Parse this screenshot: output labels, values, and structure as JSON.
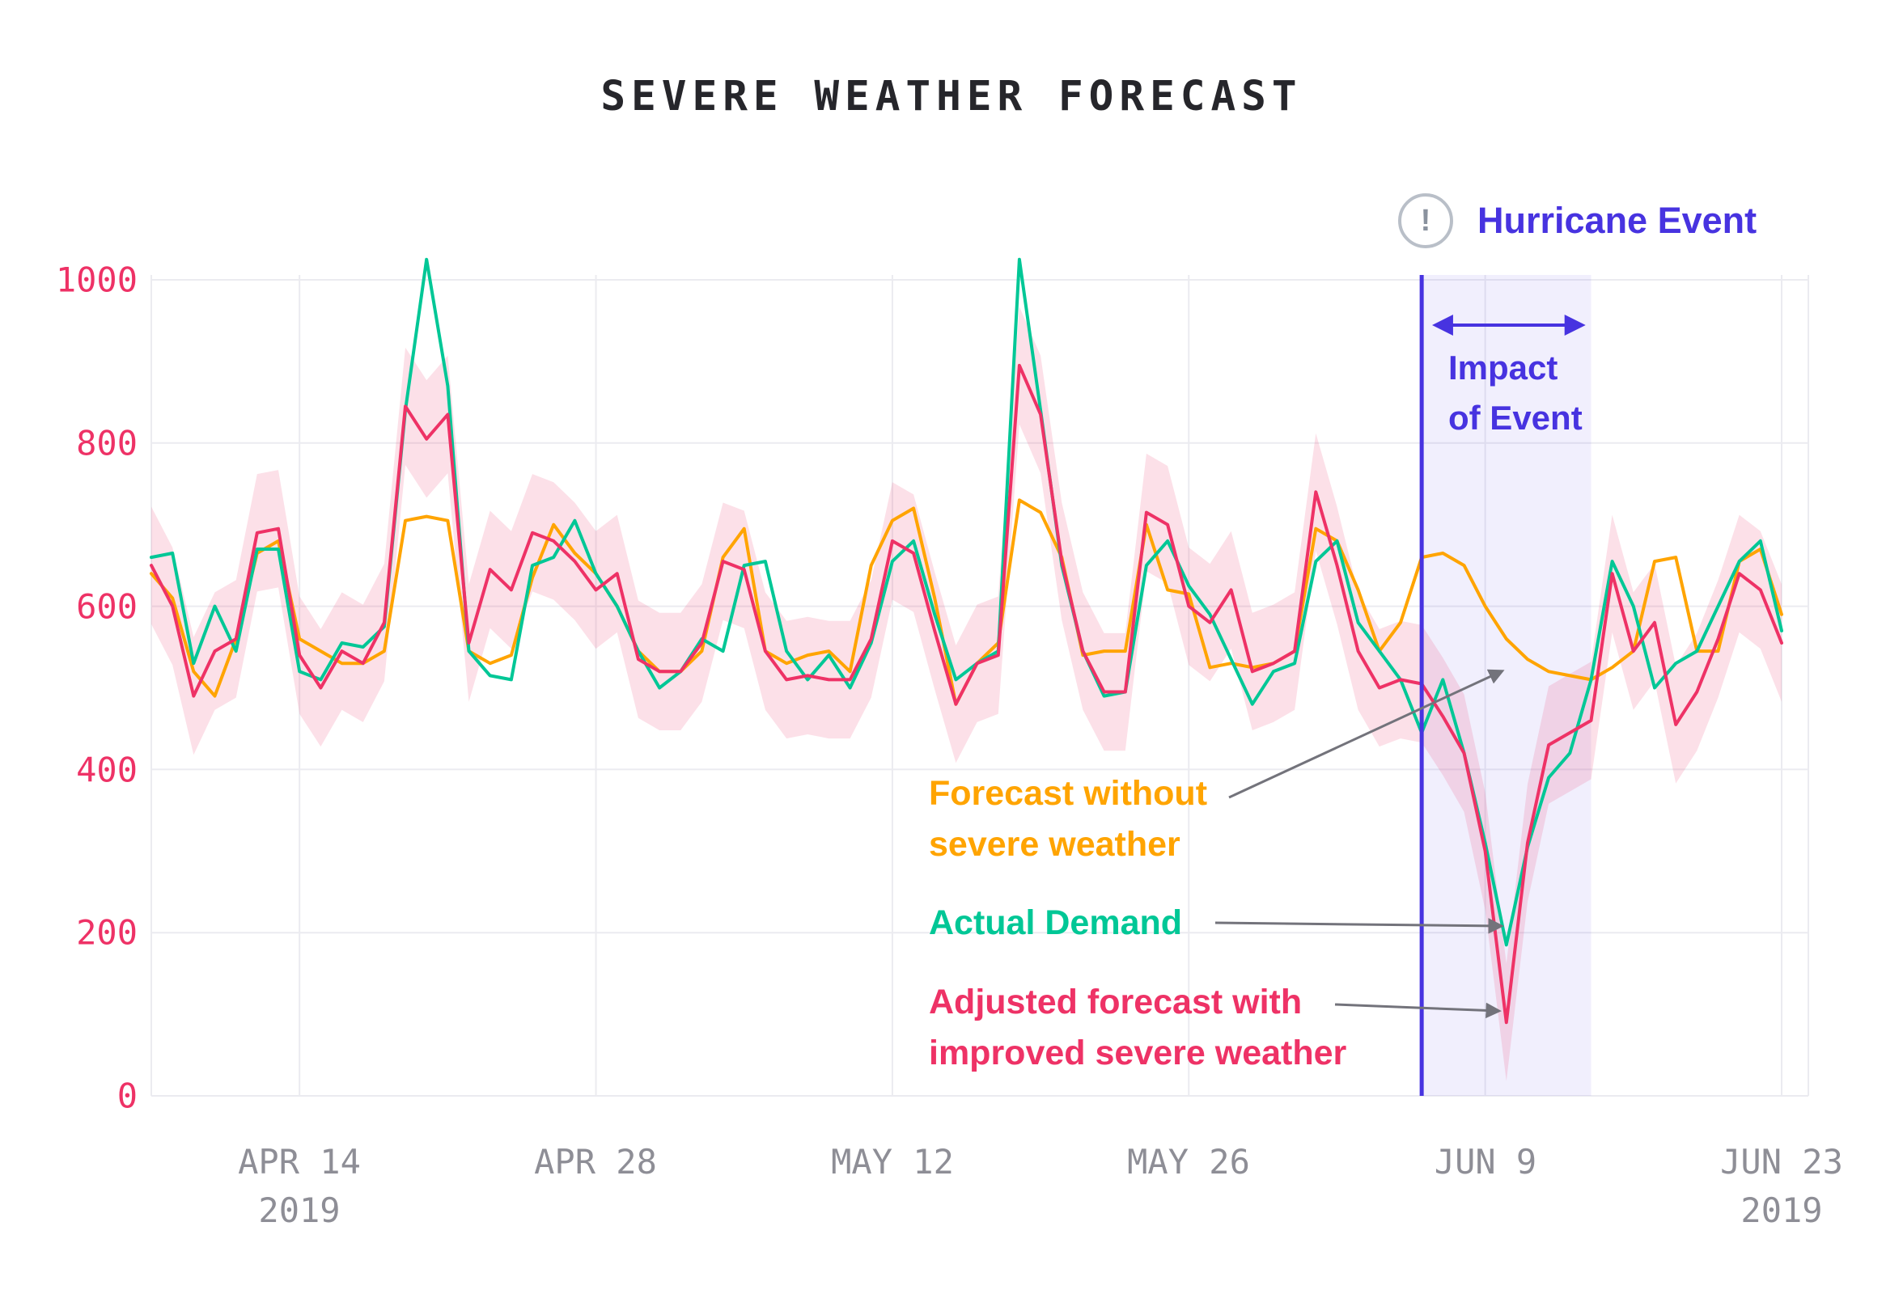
{
  "title": "SEVERE WEATHER FORECAST",
  "event_badge": {
    "icon": "!",
    "label": "Hurricane Event"
  },
  "chart_data": {
    "type": "line",
    "title": "SEVERE WEATHER FORECAST",
    "ylim": [
      0,
      1000
    ],
    "grid": true,
    "y_ticks": [
      0,
      200,
      400,
      600,
      800,
      1000
    ],
    "x_tick_labels": [
      {
        "day": 7,
        "label": "APR 14",
        "year": "2019"
      },
      {
        "day": 21,
        "label": "APR 28",
        "year": ""
      },
      {
        "day": 35,
        "label": "MAY 12",
        "year": ""
      },
      {
        "day": 49,
        "label": "MAY 26",
        "year": ""
      },
      {
        "day": 63,
        "label": "JUN 9",
        "year": ""
      },
      {
        "day": 77,
        "label": "JUN 23",
        "year": "2019"
      }
    ],
    "colors": {
      "background": "#FFFFFF",
      "grid": "#EBEBF0",
      "x_axis_labels": "#8E8E96",
      "y_axis_labels": "#EE3266",
      "title": "#26262B",
      "arrow": "#73737B"
    },
    "series": [
      {
        "name": "Actual Demand",
        "color": "#00C796",
        "values": [
          660,
          665,
          530,
          600,
          545,
          670,
          670,
          520,
          510,
          555,
          550,
          575,
          840,
          1025,
          870,
          545,
          515,
          510,
          650,
          660,
          705,
          640,
          600,
          545,
          500,
          520,
          560,
          545,
          650,
          655,
          545,
          510,
          540,
          500,
          555,
          655,
          680,
          590,
          510,
          530,
          545,
          1025,
          840,
          650,
          545,
          490,
          495,
          650,
          680,
          625,
          590,
          535,
          480,
          520,
          530,
          655,
          680,
          580,
          545,
          510,
          445,
          510,
          420,
          310,
          185,
          305,
          390,
          420,
          510,
          655,
          600,
          500,
          530,
          545,
          600,
          655,
          680,
          570
        ]
      },
      {
        "name": "Adjusted forecast with improved severe weather",
        "color": "#EE3266",
        "band_halfwidth": 72,
        "band_opacity": 0.15,
        "values": [
          650,
          600,
          490,
          545,
          560,
          690,
          695,
          540,
          500,
          545,
          530,
          580,
          845,
          805,
          835,
          555,
          645,
          620,
          690,
          680,
          655,
          620,
          640,
          535,
          520,
          520,
          555,
          655,
          645,
          545,
          510,
          515,
          510,
          510,
          560,
          680,
          665,
          570,
          480,
          530,
          540,
          895,
          835,
          655,
          545,
          495,
          495,
          715,
          700,
          600,
          580,
          620,
          520,
          530,
          545,
          740,
          650,
          545,
          500,
          510,
          505,
          465,
          420,
          300,
          90,
          310,
          430,
          445,
          460,
          640,
          545,
          580,
          455,
          495,
          560,
          640,
          620,
          555
        ]
      },
      {
        "name": "Forecast without severe weather",
        "color": "#FFA400",
        "values": [
          640,
          610,
          520,
          490,
          560,
          665,
          680,
          560,
          545,
          530,
          530,
          545,
          705,
          710,
          705,
          545,
          530,
          540,
          635,
          700,
          665,
          640,
          600,
          545,
          520,
          520,
          545,
          660,
          695,
          545,
          530,
          540,
          545,
          520,
          650,
          705,
          720,
          610,
          480,
          530,
          555,
          730,
          715,
          660,
          540,
          545,
          545,
          700,
          620,
          615,
          525,
          530,
          525,
          530,
          545,
          695,
          680,
          620,
          545,
          580,
          660,
          665,
          650,
          600,
          560,
          535,
          520,
          515,
          510,
          525,
          545,
          655,
          660,
          545,
          545,
          655,
          670,
          590
        ]
      }
    ],
    "event_window": {
      "label": "Hurricane Event",
      "impact_line1": "Impact",
      "impact_line2": "of Event",
      "start_day": 60,
      "end_day": 68,
      "color": "#4733E0",
      "region_opacity": 0.08
    },
    "annotations": [
      {
        "target": "forecast-without-severe-weather",
        "color": "#FFA400",
        "lines": [
          "Forecast without",
          "severe weather"
        ]
      },
      {
        "target": "actual-demand",
        "color": "#00C796",
        "lines": [
          "Actual Demand"
        ]
      },
      {
        "target": "adjusted-forecast",
        "color": "#EE3266",
        "lines": [
          "Adjusted forecast with",
          "improved severe weather"
        ]
      }
    ]
  }
}
